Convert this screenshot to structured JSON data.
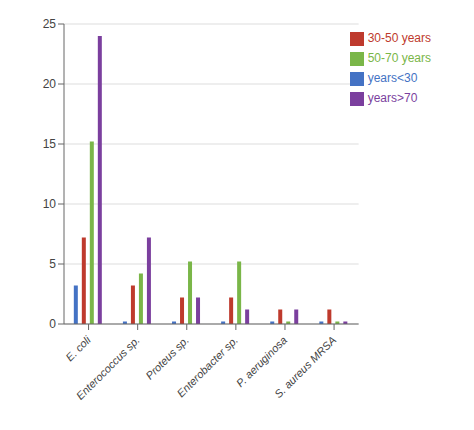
{
  "chart_data": {
    "type": "bar",
    "categories": [
      "E. coli",
      "Enterococcus sp.",
      "Proteus sp.",
      "Enterobacter sp.",
      "P. aeruginosa",
      "S. aureus MRSA"
    ],
    "series": [
      {
        "name": "years<30",
        "color": "#4472C4",
        "values": [
          3.2,
          0.2,
          0.2,
          0.2,
          0.2,
          0.2
        ]
      },
      {
        "name": "30-50 years",
        "color": "#BE3A2D",
        "values": [
          7.2,
          3.2,
          2.2,
          2.2,
          1.2,
          1.2
        ]
      },
      {
        "name": "50-70 years",
        "color": "#7AB648",
        "values": [
          15.2,
          4.2,
          5.2,
          5.2,
          0.2,
          0.2
        ]
      },
      {
        "name": "years>70",
        "color": "#7B3F9E",
        "values": [
          24.0,
          7.2,
          2.2,
          1.2,
          1.2,
          0.2
        ]
      }
    ],
    "ylim": [
      0,
      25
    ],
    "yticks": [
      0,
      5,
      10,
      15,
      20,
      25
    ],
    "grid": true,
    "legend": "upper right"
  }
}
